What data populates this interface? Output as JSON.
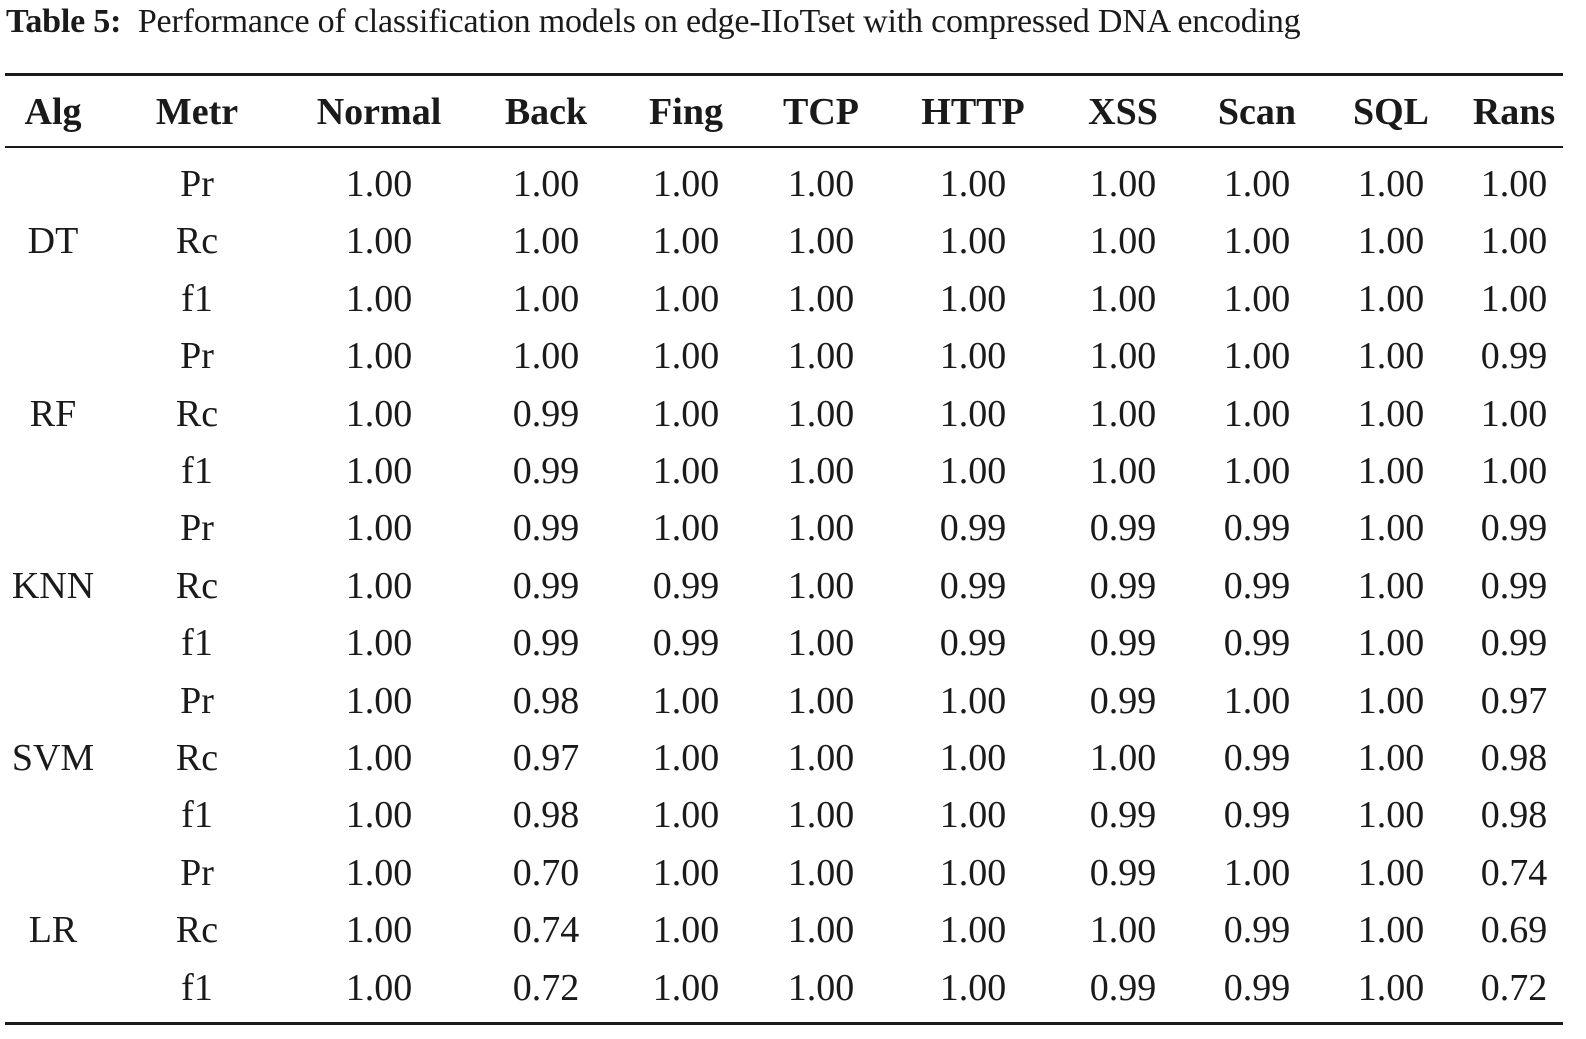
{
  "caption": {
    "label": "Table 5:",
    "text": "Performance of classification models on edge-IIoTset with compressed DNA encoding"
  },
  "table": {
    "headers": [
      "Alg",
      "Metr",
      "Normal",
      "Back",
      "Fing",
      "TCP",
      "HTTP",
      "XSS",
      "Scan",
      "SQL",
      "Rans"
    ],
    "groups": [
      {
        "alg": "DT",
        "rows": [
          {
            "metric": "Pr",
            "values": [
              "1.00",
              "1.00",
              "1.00",
              "1.00",
              "1.00",
              "1.00",
              "1.00",
              "1.00",
              "1.00"
            ]
          },
          {
            "metric": "Rc",
            "values": [
              "1.00",
              "1.00",
              "1.00",
              "1.00",
              "1.00",
              "1.00",
              "1.00",
              "1.00",
              "1.00"
            ]
          },
          {
            "metric": "f1",
            "values": [
              "1.00",
              "1.00",
              "1.00",
              "1.00",
              "1.00",
              "1.00",
              "1.00",
              "1.00",
              "1.00"
            ]
          }
        ]
      },
      {
        "alg": "RF",
        "rows": [
          {
            "metric": "Pr",
            "values": [
              "1.00",
              "1.00",
              "1.00",
              "1.00",
              "1.00",
              "1.00",
              "1.00",
              "1.00",
              "0.99"
            ]
          },
          {
            "metric": "Rc",
            "values": [
              "1.00",
              "0.99",
              "1.00",
              "1.00",
              "1.00",
              "1.00",
              "1.00",
              "1.00",
              "1.00"
            ]
          },
          {
            "metric": "f1",
            "values": [
              "1.00",
              "0.99",
              "1.00",
              "1.00",
              "1.00",
              "1.00",
              "1.00",
              "1.00",
              "1.00"
            ]
          }
        ]
      },
      {
        "alg": "KNN",
        "rows": [
          {
            "metric": "Pr",
            "values": [
              "1.00",
              "0.99",
              "1.00",
              "1.00",
              "0.99",
              "0.99",
              "0.99",
              "1.00",
              "0.99"
            ]
          },
          {
            "metric": "Rc",
            "values": [
              "1.00",
              "0.99",
              "0.99",
              "1.00",
              "0.99",
              "0.99",
              "0.99",
              "1.00",
              "0.99"
            ]
          },
          {
            "metric": "f1",
            "values": [
              "1.00",
              "0.99",
              "0.99",
              "1.00",
              "0.99",
              "0.99",
              "0.99",
              "1.00",
              "0.99"
            ]
          }
        ]
      },
      {
        "alg": "SVM",
        "rows": [
          {
            "metric": "Pr",
            "values": [
              "1.00",
              "0.98",
              "1.00",
              "1.00",
              "1.00",
              "0.99",
              "1.00",
              "1.00",
              "0.97"
            ]
          },
          {
            "metric": "Rc",
            "values": [
              "1.00",
              "0.97",
              "1.00",
              "1.00",
              "1.00",
              "1.00",
              "0.99",
              "1.00",
              "0.98"
            ]
          },
          {
            "metric": "f1",
            "values": [
              "1.00",
              "0.98",
              "1.00",
              "1.00",
              "1.00",
              "0.99",
              "0.99",
              "1.00",
              "0.98"
            ]
          }
        ]
      },
      {
        "alg": "LR",
        "rows": [
          {
            "metric": "Pr",
            "values": [
              "1.00",
              "0.70",
              "1.00",
              "1.00",
              "1.00",
              "0.99",
              "1.00",
              "1.00",
              "0.74"
            ]
          },
          {
            "metric": "Rc",
            "values": [
              "1.00",
              "0.74",
              "1.00",
              "1.00",
              "1.00",
              "1.00",
              "0.99",
              "1.00",
              "0.69"
            ]
          },
          {
            "metric": "f1",
            "values": [
              "1.00",
              "0.72",
              "1.00",
              "1.00",
              "1.00",
              "0.99",
              "0.99",
              "1.00",
              "0.72"
            ]
          }
        ]
      }
    ]
  }
}
